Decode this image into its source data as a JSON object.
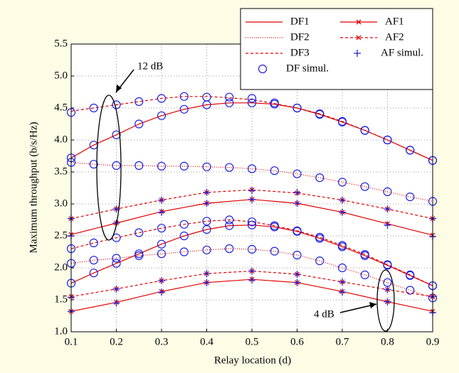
{
  "chart_data": {
    "type": "line",
    "xlabel": "Relay location (d)",
    "ylabel": "Maximum throughput (b/s/Hz)",
    "xlim": [
      0.1,
      0.9
    ],
    "ylim": [
      1,
      5.5
    ],
    "xticks": [
      0.1,
      0.2,
      0.3,
      0.4,
      0.5,
      0.6,
      0.7,
      0.8,
      0.9
    ],
    "yticks": [
      {
        "value": 1,
        "label": "1.0"
      },
      1.5,
      {
        "value": 2,
        "label": "2.0"
      },
      2.5,
      {
        "value": 3,
        "label": "3.0"
      },
      3.5,
      {
        "value": 4,
        "label": "4.0"
      },
      4.5,
      {
        "value": 5,
        "label": "5.0"
      },
      5.5
    ],
    "grid": true,
    "legend": "upper right",
    "annotations": [
      "12 dB",
      "4 dB"
    ],
    "series": [
      {
        "name": "DF1",
        "color": "#e00000",
        "dash": "solid",
        "marker": "none",
        "x": [
          0.1,
          0.15,
          0.2,
          0.25,
          0.3,
          0.35,
          0.4,
          0.45,
          0.5,
          0.55,
          0.6,
          0.65,
          0.7,
          0.75,
          0.8,
          0.85,
          0.9
        ],
        "curves": [
          [
            3.72,
            3.92,
            4.08,
            4.25,
            4.38,
            4.48,
            4.55,
            4.58,
            4.58,
            4.56,
            4.5,
            4.4,
            4.28,
            4.15,
            4.0,
            3.84,
            3.68
          ],
          [
            1.76,
            1.92,
            2.07,
            2.22,
            2.37,
            2.5,
            2.6,
            2.66,
            2.67,
            2.64,
            2.57,
            2.46,
            2.33,
            2.19,
            2.04,
            1.88,
            1.72
          ]
        ]
      },
      {
        "name": "DF2",
        "color": "#e00000",
        "dash": "dotted",
        "marker": "none",
        "x": [
          0.1,
          0.15,
          0.2,
          0.25,
          0.3,
          0.35,
          0.4,
          0.45,
          0.5,
          0.55,
          0.6,
          0.65,
          0.7,
          0.75,
          0.8,
          0.85,
          0.9
        ],
        "curves": [
          [
            3.65,
            3.62,
            3.6,
            3.6,
            3.59,
            3.59,
            3.58,
            3.57,
            3.55,
            3.52,
            3.47,
            3.41,
            3.34,
            3.27,
            3.19,
            3.11,
            3.04
          ],
          [
            2.07,
            2.12,
            2.15,
            2.19,
            2.22,
            2.25,
            2.28,
            2.3,
            2.29,
            2.26,
            2.2,
            2.11,
            2.0,
            1.89,
            1.77,
            1.65,
            1.53
          ]
        ]
      },
      {
        "name": "DF3",
        "color": "#e00000",
        "dash": "dashed",
        "marker": "none",
        "x": [
          0.1,
          0.15,
          0.2,
          0.25,
          0.3,
          0.35,
          0.4,
          0.45,
          0.5,
          0.55,
          0.6,
          0.65,
          0.7,
          0.75,
          0.8,
          0.85,
          0.9
        ],
        "curves": [
          [
            4.45,
            4.5,
            4.55,
            4.6,
            4.65,
            4.68,
            4.68,
            4.66,
            4.63,
            4.57,
            4.5,
            4.41,
            4.29,
            4.15,
            4.0,
            3.84,
            3.68
          ],
          [
            2.3,
            2.39,
            2.47,
            2.55,
            2.62,
            2.68,
            2.73,
            2.75,
            2.72,
            2.66,
            2.58,
            2.48,
            2.35,
            2.21,
            2.05,
            1.89,
            1.72
          ]
        ]
      },
      {
        "name": "DF simul.",
        "color": "#2020e0",
        "dash": "none",
        "marker": "circle",
        "x": [
          0.1,
          0.15,
          0.2,
          0.25,
          0.3,
          0.35,
          0.4,
          0.45,
          0.5,
          0.55,
          0.6,
          0.65,
          0.7,
          0.75,
          0.8,
          0.85,
          0.9
        ],
        "curves": [
          [
            3.72,
            3.92,
            4.08,
            4.25,
            4.38,
            4.48,
            4.55,
            4.58,
            4.58,
            4.56,
            4.5,
            4.4,
            4.28,
            4.15,
            4.0,
            3.84,
            3.68
          ],
          [
            4.43,
            4.5,
            4.55,
            4.6,
            4.65,
            4.68,
            4.67,
            4.67,
            4.65,
            4.58,
            4.5,
            4.41,
            4.29,
            4.15,
            4.0,
            3.84,
            3.68
          ],
          [
            3.65,
            3.62,
            3.6,
            3.6,
            3.59,
            3.59,
            3.58,
            3.57,
            3.55,
            3.52,
            3.47,
            3.41,
            3.34,
            3.27,
            3.19,
            3.11,
            3.04
          ],
          [
            1.76,
            1.92,
            2.07,
            2.22,
            2.37,
            2.5,
            2.6,
            2.66,
            2.67,
            2.64,
            2.57,
            2.46,
            2.33,
            2.19,
            2.04,
            1.88,
            1.72
          ],
          [
            2.3,
            2.39,
            2.47,
            2.55,
            2.62,
            2.68,
            2.73,
            2.75,
            2.72,
            2.66,
            2.58,
            2.48,
            2.35,
            2.21,
            2.05,
            1.89,
            1.72
          ],
          [
            2.07,
            2.12,
            2.15,
            2.19,
            2.22,
            2.25,
            2.28,
            2.3,
            2.29,
            2.26,
            2.2,
            2.11,
            2.0,
            1.89,
            1.77,
            1.65,
            1.53
          ]
        ]
      },
      {
        "name": "AF1",
        "color": "#e00000",
        "dash": "solid",
        "marker": "x",
        "x": [
          0.1,
          0.2,
          0.3,
          0.4,
          0.5,
          0.6,
          0.7,
          0.8,
          0.9
        ],
        "curves": [
          [
            2.52,
            2.7,
            2.88,
            3.01,
            3.07,
            3.01,
            2.87,
            2.69,
            2.51
          ],
          [
            1.32,
            1.46,
            1.63,
            1.77,
            1.82,
            1.77,
            1.63,
            1.47,
            1.32
          ]
        ]
      },
      {
        "name": "AF2",
        "color": "#e00000",
        "dash": "dashed",
        "marker": "x",
        "x": [
          0.1,
          0.2,
          0.3,
          0.4,
          0.5,
          0.6,
          0.7,
          0.8,
          0.9
        ],
        "curves": [
          [
            2.77,
            2.92,
            3.06,
            3.18,
            3.22,
            3.17,
            3.06,
            2.92,
            2.77
          ],
          [
            1.55,
            1.67,
            1.8,
            1.91,
            1.95,
            1.9,
            1.78,
            1.66,
            1.55
          ]
        ]
      },
      {
        "name": "AF simul.",
        "color": "#2020e0",
        "dash": "none",
        "marker": "plus",
        "x": [
          0.1,
          0.2,
          0.3,
          0.4,
          0.5,
          0.6,
          0.7,
          0.8,
          0.9
        ],
        "curves": [
          [
            2.5,
            2.7,
            2.87,
            3.01,
            3.07,
            3.01,
            2.87,
            2.67,
            2.49
          ],
          [
            2.77,
            2.92,
            3.06,
            3.18,
            3.21,
            3.18,
            3.06,
            2.92,
            2.77
          ],
          [
            1.32,
            1.45,
            1.62,
            1.77,
            1.81,
            1.77,
            1.62,
            1.47,
            1.3
          ],
          [
            1.54,
            1.67,
            1.8,
            1.91,
            1.95,
            1.9,
            1.78,
            1.66,
            1.55
          ]
        ]
      }
    ]
  }
}
